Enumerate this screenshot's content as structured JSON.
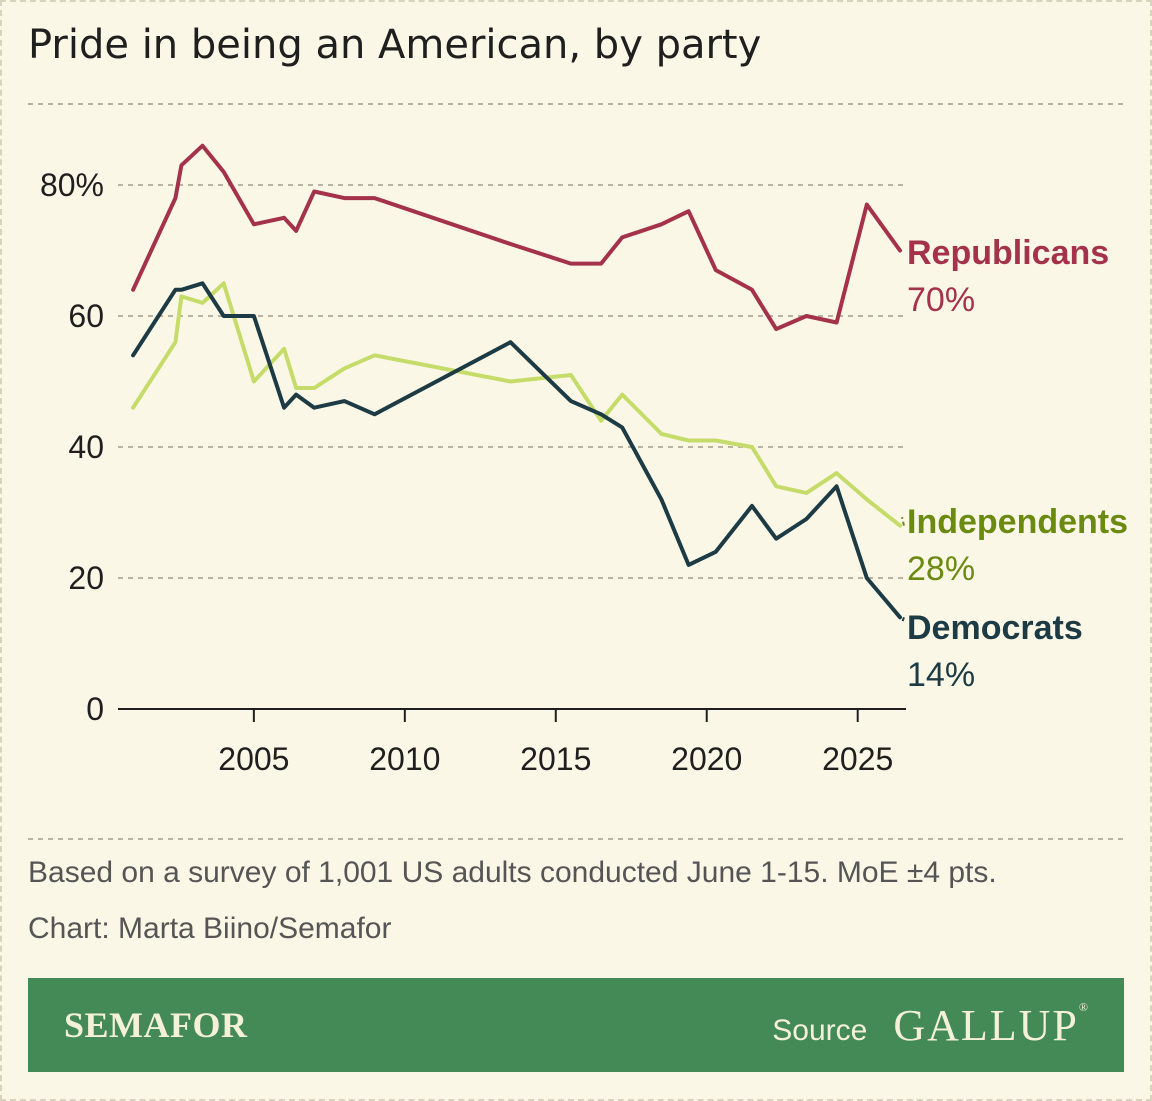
{
  "title": "Pride in being an American, by party",
  "notes": {
    "survey": "Based on a survey of 1,001 US adults conducted June 1-15. MoE ±4 pts.",
    "credit": "Chart: Marta Biino/Semafor"
  },
  "footer": {
    "brand": "SEMAFOR",
    "source_label": "Source",
    "source_name": "GALLUP",
    "registered_mark": "®"
  },
  "chart_data": {
    "type": "line",
    "title": "Pride in being an American, by party",
    "xlabel": "",
    "ylabel": "",
    "xlim": [
      2000.5,
      2026.6
    ],
    "ylim": [
      0,
      80
    ],
    "y_ticks": [
      0,
      20,
      40,
      60,
      80
    ],
    "y_tick_labels": [
      "0",
      "20",
      "40",
      "60",
      "80%"
    ],
    "x_ticks": [
      2005,
      2010,
      2015,
      2020,
      2025
    ],
    "x_tick_labels": [
      "2005",
      "2010",
      "2015",
      "2020",
      "2025"
    ],
    "grid": "horizontal dotted",
    "legend": "direct labels at right end of lines",
    "series": [
      {
        "name": "Republicans",
        "end_label": "70%",
        "color": "#a3324a",
        "points": [
          [
            2001,
            64
          ],
          [
            2002.4,
            78
          ],
          [
            2002.6,
            83
          ],
          [
            2003.3,
            86
          ],
          [
            2004,
            82
          ],
          [
            2005,
            74
          ],
          [
            2006,
            75
          ],
          [
            2006.4,
            73
          ],
          [
            2007,
            79
          ],
          [
            2008,
            78
          ],
          [
            2009,
            78
          ],
          [
            2013.5,
            71
          ],
          [
            2015.5,
            68
          ],
          [
            2016.5,
            68
          ],
          [
            2017.2,
            72
          ],
          [
            2018.5,
            74
          ],
          [
            2019.4,
            76
          ],
          [
            2020.3,
            67
          ],
          [
            2021.5,
            64
          ],
          [
            2022.3,
            58
          ],
          [
            2023.3,
            60
          ],
          [
            2024.3,
            59
          ],
          [
            2025.3,
            77
          ],
          [
            2026.4,
            70
          ]
        ]
      },
      {
        "name": "Independents",
        "end_label": "28%",
        "color": "#c5dc6a",
        "label_color": "#6a8a12",
        "points": [
          [
            2001,
            46
          ],
          [
            2002.4,
            56
          ],
          [
            2002.6,
            63
          ],
          [
            2003.3,
            62
          ],
          [
            2004,
            65
          ],
          [
            2005,
            50
          ],
          [
            2006,
            55
          ],
          [
            2006.4,
            49
          ],
          [
            2007,
            49
          ],
          [
            2008,
            52
          ],
          [
            2009,
            54
          ],
          [
            2013.5,
            50
          ],
          [
            2015.5,
            51
          ],
          [
            2016.5,
            44
          ],
          [
            2017.2,
            48
          ],
          [
            2018.5,
            42
          ],
          [
            2019.4,
            41
          ],
          [
            2020.3,
            41
          ],
          [
            2021.5,
            40
          ],
          [
            2022.3,
            34
          ],
          [
            2023.3,
            33
          ],
          [
            2024.3,
            36
          ],
          [
            2025.3,
            32
          ],
          [
            2026.4,
            28
          ]
        ]
      },
      {
        "name": "Democrats",
        "end_label": "14%",
        "color": "#1d3b44",
        "points": [
          [
            2001,
            54
          ],
          [
            2002.4,
            64
          ],
          [
            2002.6,
            64
          ],
          [
            2003.3,
            65
          ],
          [
            2004,
            60
          ],
          [
            2005,
            60
          ],
          [
            2006,
            46
          ],
          [
            2006.4,
            48
          ],
          [
            2007,
            46
          ],
          [
            2008,
            47
          ],
          [
            2009,
            45
          ],
          [
            2013.5,
            56
          ],
          [
            2015.5,
            47
          ],
          [
            2016.5,
            45
          ],
          [
            2017.2,
            43
          ],
          [
            2018.5,
            32
          ],
          [
            2019.4,
            22
          ],
          [
            2020.3,
            24
          ],
          [
            2021.5,
            31
          ],
          [
            2022.3,
            26
          ],
          [
            2023.3,
            29
          ],
          [
            2024.3,
            34
          ],
          [
            2025.3,
            20
          ],
          [
            2026.4,
            14
          ]
        ]
      }
    ]
  }
}
